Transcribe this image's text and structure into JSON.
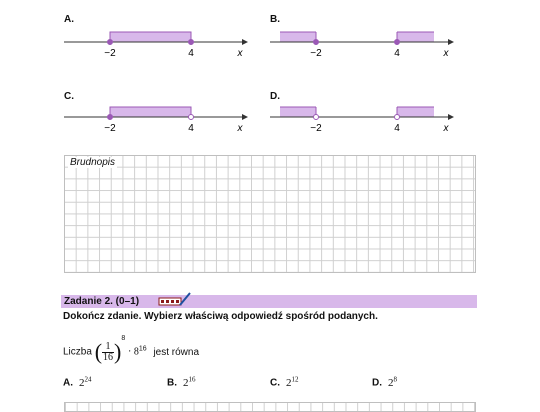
{
  "options": [
    {
      "letter": "A.",
      "left_label": "−2",
      "right_label": "4",
      "x_label": "x"
    },
    {
      "letter": "B.",
      "left_label": "−2",
      "right_label": "4",
      "x_label": "x"
    },
    {
      "letter": "C.",
      "left_label": "−2",
      "right_label": "4",
      "x_label": "x"
    },
    {
      "letter": "D.",
      "left_label": "−2",
      "right_label": "4",
      "x_label": "x"
    }
  ],
  "brudnopis": "Brudnopis",
  "task": {
    "title": "Zadanie 2. (0–1)",
    "instruction": "Dokończ zdanie. Wybierz właściwą odpowiedź spośród podanych.",
    "expr_prefix": "Liczba",
    "frac_num": "1",
    "frac_den": "16",
    "exp1": "8",
    "base2": "8",
    "exp2": "16",
    "expr_suffix": "jest równa",
    "answers": [
      {
        "letter": "A.",
        "base": "2",
        "exp": "24"
      },
      {
        "letter": "B.",
        "base": "2",
        "exp": "16"
      },
      {
        "letter": "C.",
        "base": "2",
        "exp": "12"
      },
      {
        "letter": "D.",
        "base": "2",
        "exp": "8"
      }
    ]
  },
  "colors": {
    "interval_fill": "#d8b8ea",
    "interval_stroke": "#9b59b6",
    "task_bar": "#d8b8ea"
  }
}
